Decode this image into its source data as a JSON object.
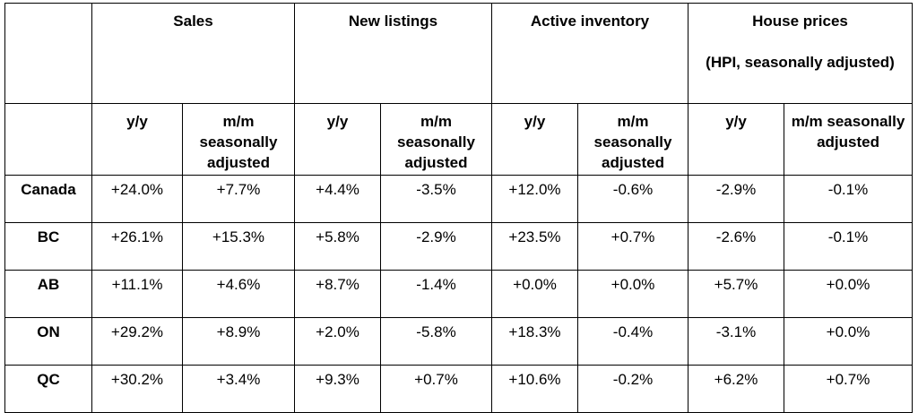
{
  "table": {
    "groups": [
      {
        "title": "Sales",
        "subtitle": ""
      },
      {
        "title": "New listings",
        "subtitle": ""
      },
      {
        "title": "Active inventory",
        "subtitle": ""
      },
      {
        "title": "House prices",
        "subtitle": "(HPI, seasonally adjusted)"
      }
    ],
    "subheaders": [
      "y/y",
      "m/m seasonally adjusted",
      "y/y",
      "m/m seasonally adjusted",
      "y/y",
      "m/m seasonally adjusted",
      "y/y",
      "m/m seasonally adjusted"
    ],
    "rows": [
      {
        "region": "Canada",
        "values": [
          "+24.0%",
          "+7.7%",
          "+4.4%",
          "-3.5%",
          "+12.0%",
          "-0.6%",
          "-2.9%",
          "-0.1%"
        ]
      },
      {
        "region": "BC",
        "values": [
          "+26.1%",
          "+15.3%",
          "+5.8%",
          "-2.9%",
          "+23.5%",
          "+0.7%",
          "-2.6%",
          "-0.1%"
        ]
      },
      {
        "region": "AB",
        "values": [
          "+11.1%",
          "+4.6%",
          "+8.7%",
          "-1.4%",
          "+0.0%",
          "+0.0%",
          "+5.7%",
          "+0.0%"
        ]
      },
      {
        "region": "ON",
        "values": [
          "+29.2%",
          "+8.9%",
          "+2.0%",
          "-5.8%",
          "+18.3%",
          "-0.4%",
          "-3.1%",
          "+0.0%"
        ]
      },
      {
        "region": "QC",
        "values": [
          "+30.2%",
          "+3.4%",
          "+9.3%",
          "+0.7%",
          "+10.6%",
          "-0.2%",
          "+6.2%",
          "+0.7%"
        ]
      }
    ]
  }
}
